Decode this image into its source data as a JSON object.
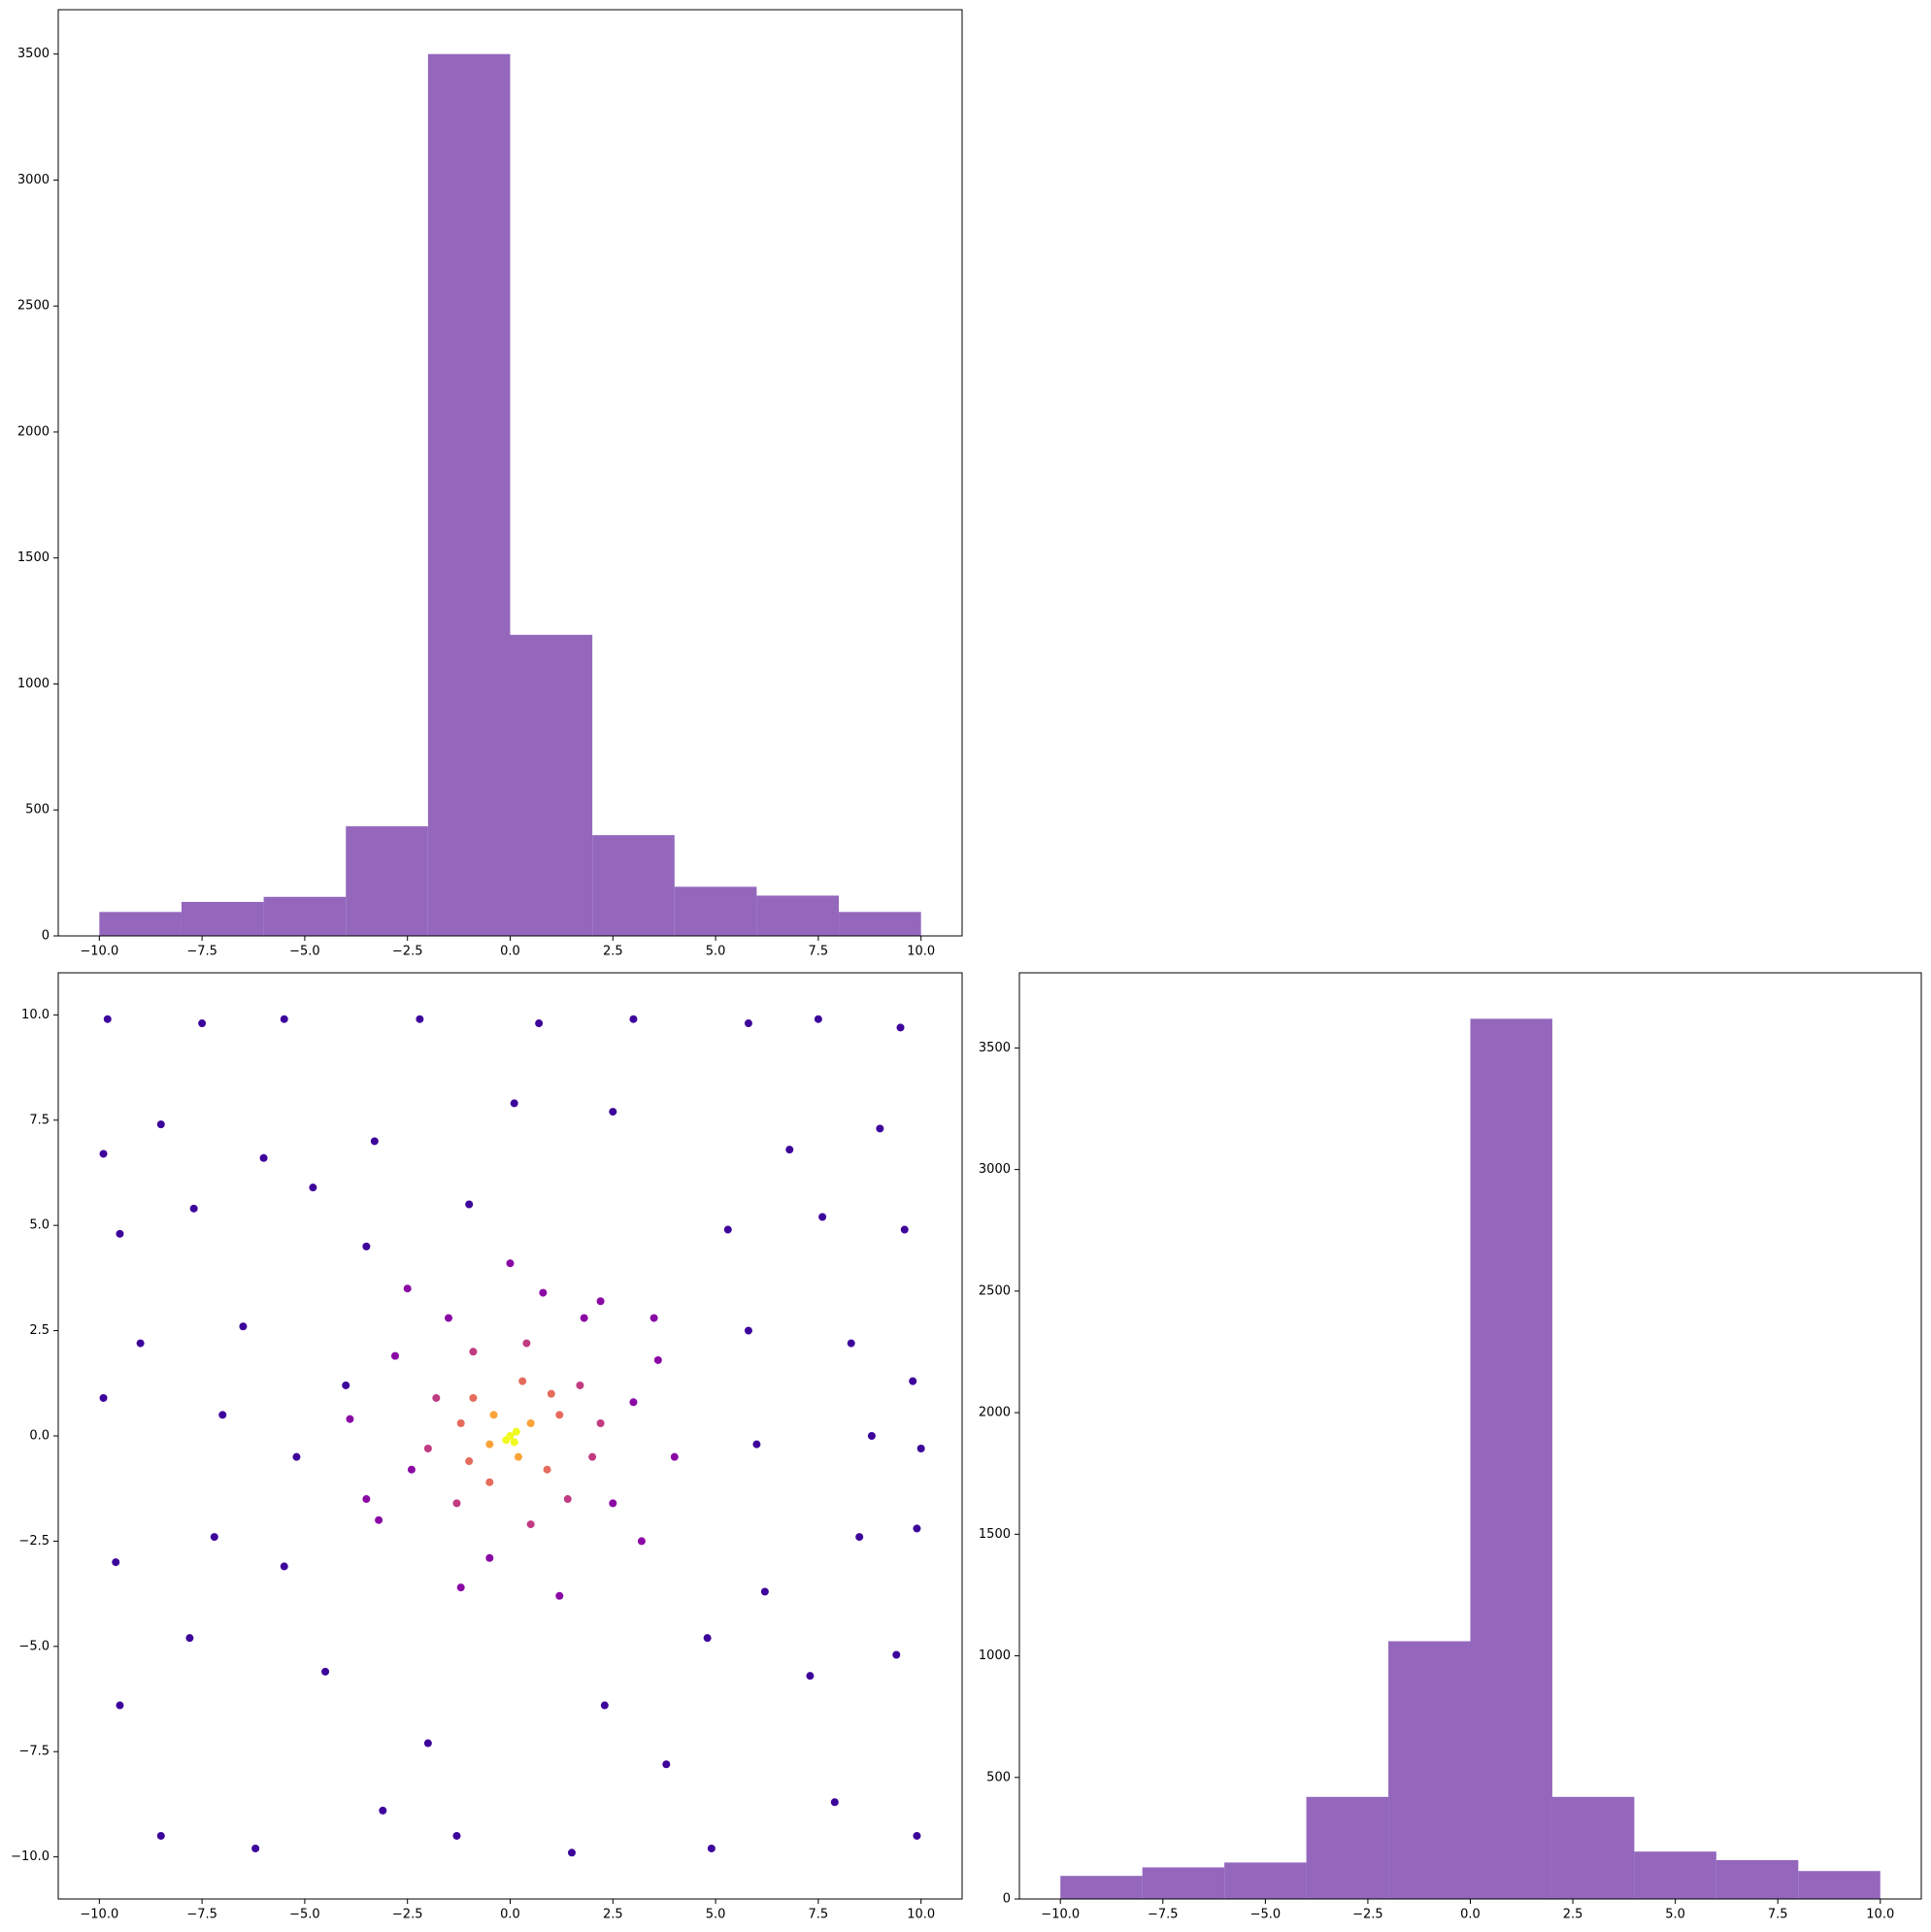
{
  "chart_data": [
    {
      "type": "histogram",
      "color": "#9467bd",
      "bins": [
        -10,
        -8,
        -6,
        -4,
        -2,
        0,
        2,
        4,
        6,
        8,
        10
      ],
      "values": [
        95,
        135,
        155,
        435,
        3500,
        1195,
        400,
        195,
        160,
        95
      ],
      "xlim": [
        -11,
        11
      ],
      "ylim": [
        0,
        3676
      ],
      "xticks": [
        {
          "value": -10,
          "label": "−10.0"
        },
        {
          "value": -7.5,
          "label": "−7.5"
        },
        {
          "value": -5,
          "label": "−5.0"
        },
        {
          "value": -2.5,
          "label": "−2.5"
        },
        {
          "value": 0,
          "label": "0.0"
        },
        {
          "value": 2.5,
          "label": "2.5"
        },
        {
          "value": 5,
          "label": "5.0"
        },
        {
          "value": 7.5,
          "label": "7.5"
        },
        {
          "value": 10,
          "label": "10.0"
        }
      ],
      "yticks": [
        0,
        500,
        1000,
        1500,
        2000,
        2500,
        3000,
        3500
      ]
    },
    {
      "type": "scatter",
      "xlim": [
        -11,
        11
      ],
      "ylim": [
        -11,
        11
      ],
      "xticks": [
        {
          "value": -10,
          "label": "−10.0"
        },
        {
          "value": -7.5,
          "label": "−7.5"
        },
        {
          "value": -5,
          "label": "−5.0"
        },
        {
          "value": -2.5,
          "label": "−2.5"
        },
        {
          "value": 0,
          "label": "0.0"
        },
        {
          "value": 2.5,
          "label": "2.5"
        },
        {
          "value": 5,
          "label": "5.0"
        },
        {
          "value": 7.5,
          "label": "7.5"
        },
        {
          "value": 10,
          "label": "10.0"
        }
      ],
      "yticks": [
        {
          "value": -10,
          "label": "−10.0"
        },
        {
          "value": -7.5,
          "label": "−7.5"
        },
        {
          "value": -5,
          "label": "−5.0"
        },
        {
          "value": -2.5,
          "label": "−2.5"
        },
        {
          "value": 0,
          "label": "0.0"
        },
        {
          "value": 2.5,
          "label": "2.5"
        },
        {
          "value": 5,
          "label": "5.0"
        },
        {
          "value": 7.5,
          "label": "7.5"
        },
        {
          "value": 10,
          "label": "10.0"
        }
      ],
      "series": [
        {
          "color": "#3d049b",
          "x": [
            -9.8,
            -7.5,
            -5.5,
            -2.2,
            0.7,
            3,
            5.8,
            7.5,
            9.5,
            -9.9,
            -8.5,
            -6,
            -3.3,
            2.5,
            6.8,
            9,
            -9.5,
            -7.7,
            -4.8,
            5.3,
            7.6,
            9.6,
            -9,
            -6.5,
            -4,
            5.8,
            8.3,
            9.8,
            -9.9,
            -7,
            -5.2,
            6,
            8.8,
            10,
            -9.6,
            -7.2,
            -5.5,
            6.2,
            8.5,
            9.9,
            -9.5,
            -7.8,
            -4.5,
            4.8,
            7.3,
            9.4,
            -8.5,
            -6.2,
            -3.1,
            -1.3,
            1.5,
            4.9,
            7.9,
            9.9,
            -2,
            2.3,
            0.1,
            -1,
            3.8,
            -3.5
          ],
          "y": [
            9.9,
            9.8,
            9.9,
            9.9,
            9.8,
            9.9,
            9.8,
            9.9,
            9.7,
            6.7,
            7.4,
            6.6,
            7,
            7.7,
            6.8,
            7.3,
            4.8,
            5.4,
            5.9,
            4.9,
            5.2,
            4.9,
            2.2,
            2.6,
            1.2,
            2.5,
            2.2,
            1.3,
            0.9,
            0.5,
            -0.5,
            -0.2,
            0,
            -0.3,
            -3,
            -2.4,
            -3.1,
            -3.7,
            -2.4,
            -2.2,
            -6.4,
            -4.8,
            -5.6,
            -4.8,
            -5.7,
            -5.2,
            -9.5,
            -9.8,
            -8.9,
            -9.5,
            -9.9,
            -9.8,
            -8.7,
            -9.5,
            -7.3,
            -6.4,
            7.9,
            5.5,
            -7.8,
            4.5
          ]
        },
        {
          "color": "#8a09a5",
          "x": [
            -2.5,
            0,
            2.2,
            3.6,
            4,
            3.2,
            1.2,
            -1.2,
            -3.2,
            -3.9,
            -2.8,
            1.8,
            3,
            2.5,
            -0.5,
            -2.4,
            -1.5,
            0.8,
            -3.5,
            3.5
          ],
          "y": [
            3.5,
            4.1,
            3.2,
            1.8,
            -0.5,
            -2.5,
            -3.8,
            -3.6,
            -2,
            0.4,
            1.9,
            2.8,
            0.8,
            -1.6,
            -2.9,
            -0.8,
            2.8,
            3.4,
            -1.5,
            2.8
          ]
        },
        {
          "color": "#c13b82",
          "x": [
            -1.8,
            1.7,
            2,
            0.5,
            -1.3,
            -2,
            0.4,
            1.4,
            -0.9,
            2.2
          ],
          "y": [
            0.9,
            1.2,
            -0.5,
            -2.1,
            -1.6,
            -0.3,
            2.2,
            -1.5,
            2,
            0.3
          ]
        },
        {
          "color": "#e56b5d",
          "x": [
            -1.2,
            1.2,
            0.3,
            -0.5,
            0.9,
            -0.9,
            1,
            -1
          ],
          "y": [
            0.3,
            0.5,
            1.3,
            -1.1,
            -0.8,
            0.9,
            1,
            -0.6
          ]
        },
        {
          "color": "#fba238",
          "x": [
            0.5,
            -0.4,
            0.2,
            -0.5
          ],
          "y": [
            0.3,
            0.5,
            -0.5,
            -0.2
          ]
        },
        {
          "color": "#f0f921",
          "x": [
            0,
            0.15,
            -0.1,
            0.1
          ],
          "y": [
            0,
            0.1,
            -0.1,
            -0.15
          ]
        }
      ]
    },
    {
      "type": "histogram",
      "color": "#9467bd",
      "bins": [
        -10,
        -8,
        -6,
        -4,
        -2,
        0,
        2,
        4,
        6,
        8,
        10
      ],
      "values": [
        95,
        130,
        150,
        420,
        1060,
        3620,
        420,
        195,
        160,
        115
      ],
      "xlim": [
        -11,
        11
      ],
      "ylim": [
        0,
        3809
      ],
      "xticks": [
        {
          "value": -10,
          "label": "−10.0"
        },
        {
          "value": -7.5,
          "label": "−7.5"
        },
        {
          "value": -5,
          "label": "−5.0"
        },
        {
          "value": -2.5,
          "label": "−2.5"
        },
        {
          "value": 0,
          "label": "0.0"
        },
        {
          "value": 2.5,
          "label": "2.5"
        },
        {
          "value": 5,
          "label": "5.0"
        },
        {
          "value": 7.5,
          "label": "7.5"
        },
        {
          "value": 10,
          "label": "10.0"
        }
      ],
      "yticks": [
        0,
        500,
        1000,
        1500,
        2000,
        2500,
        3000,
        3500
      ]
    }
  ]
}
